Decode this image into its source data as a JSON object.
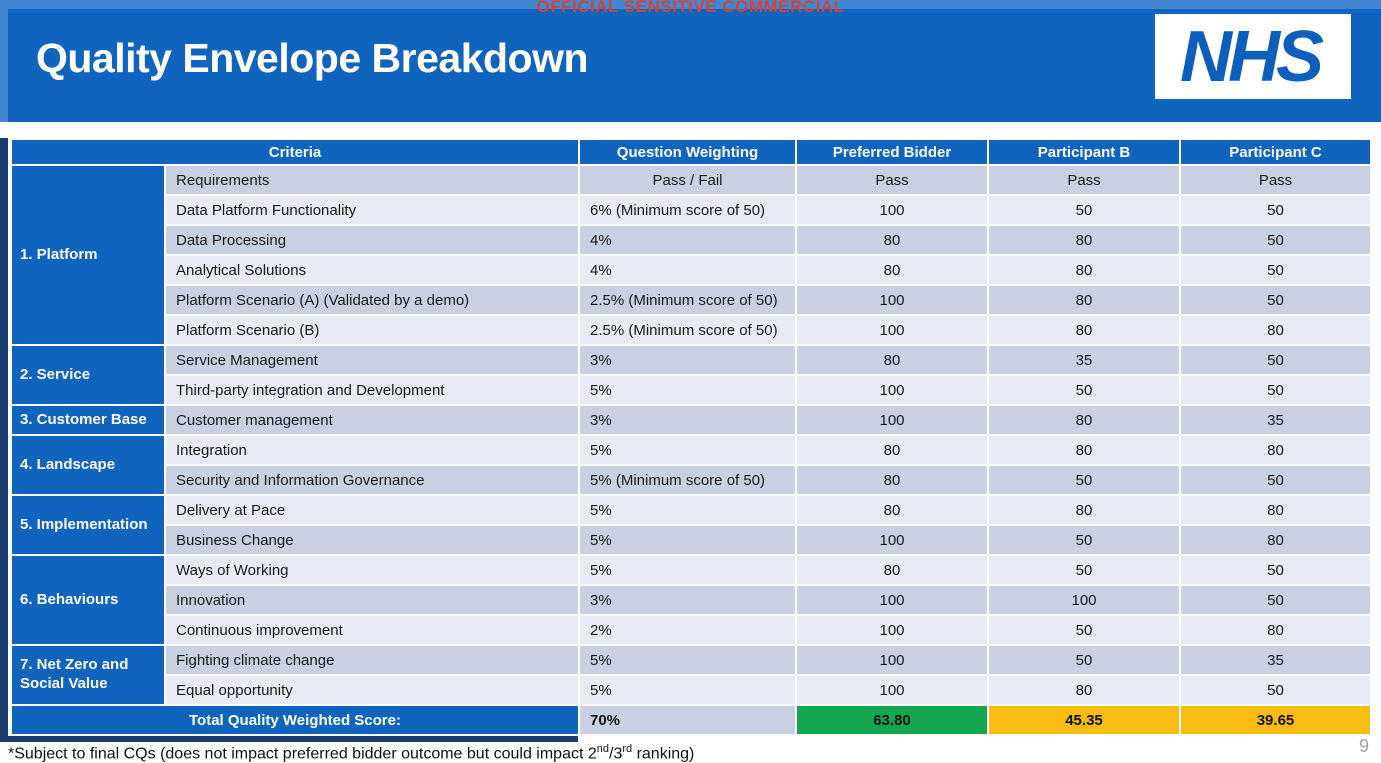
{
  "classification": "OFFICIAL SENSITIVE COMMERCIAL",
  "header": {
    "title": "Quality Envelope Breakdown",
    "logo_text": "NHS"
  },
  "table": {
    "columns": [
      "Criteria",
      "Question Weighting",
      "Preferred Bidder",
      "Participant B",
      "Participant C"
    ],
    "groups": [
      {
        "category": "1. Platform",
        "rows": [
          {
            "criterion": "Requirements",
            "weighting": "Pass / Fail",
            "align": "center",
            "preferred_bidder": "Pass",
            "participant_b": "Pass",
            "participant_c": "Pass"
          },
          {
            "criterion": "Data Platform Functionality",
            "weighting": "6% (Minimum score of 50)",
            "preferred_bidder": "100",
            "participant_b": "50",
            "participant_c": "50"
          },
          {
            "criterion": "Data Processing",
            "weighting": "4%",
            "preferred_bidder": "80",
            "participant_b": "80",
            "participant_c": "50"
          },
          {
            "criterion": "Analytical Solutions",
            "weighting": "4%",
            "preferred_bidder": "80",
            "participant_b": "80",
            "participant_c": "50"
          },
          {
            "criterion": "Platform Scenario (A) (Validated by a demo)",
            "weighting": "2.5% (Minimum score of 50)",
            "preferred_bidder": "100",
            "participant_b": "80",
            "participant_c": "50"
          },
          {
            "criterion": "Platform Scenario (B)",
            "weighting": "2.5% (Minimum score of 50)",
            "preferred_bidder": "100",
            "participant_b": "80",
            "participant_c": "80"
          }
        ]
      },
      {
        "category": "2. Service",
        "rows": [
          {
            "criterion": "Service Management",
            "weighting": "3%",
            "preferred_bidder": "80",
            "participant_b": "35",
            "participant_c": "50"
          },
          {
            "criterion": "Third-party integration and Development",
            "weighting": "5%",
            "preferred_bidder": "100",
            "participant_b": "50",
            "participant_c": "50"
          }
        ]
      },
      {
        "category": "3. Customer Base",
        "rows": [
          {
            "criterion": "Customer management",
            "weighting": "3%",
            "preferred_bidder": "100",
            "participant_b": "80",
            "participant_c": "35"
          }
        ]
      },
      {
        "category": "4. Landscape",
        "rows": [
          {
            "criterion": "Integration",
            "weighting": "5%",
            "preferred_bidder": "80",
            "participant_b": "80",
            "participant_c": "80"
          },
          {
            "criterion": "Security and Information Governance",
            "weighting": "5% (Minimum score of 50)",
            "preferred_bidder": "80",
            "participant_b": "50",
            "participant_c": "50"
          }
        ]
      },
      {
        "category": "5. Implementation",
        "rows": [
          {
            "criterion": "Delivery at Pace",
            "weighting": "5%",
            "preferred_bidder": "80",
            "participant_b": "80",
            "participant_c": "80"
          },
          {
            "criterion": "Business Change",
            "weighting": "5%",
            "preferred_bidder": "100",
            "participant_b": "50",
            "participant_c": "80"
          }
        ]
      },
      {
        "category": "6. Behaviours",
        "rows": [
          {
            "criterion": "Ways of Working",
            "weighting": "5%",
            "preferred_bidder": "80",
            "participant_b": "50",
            "participant_c": "50"
          },
          {
            "criterion": "Innovation",
            "weighting": "3%",
            "preferred_bidder": "100",
            "participant_b": "100",
            "participant_c": "50"
          },
          {
            "criterion": "Continuous improvement",
            "weighting": "2%",
            "preferred_bidder": "100",
            "participant_b": "50",
            "participant_c": "80"
          }
        ]
      },
      {
        "category": "7. Net Zero and Social Value",
        "rows": [
          {
            "criterion": "Fighting climate change",
            "weighting": "5%",
            "preferred_bidder": "100",
            "participant_b": "50",
            "participant_c": "35"
          },
          {
            "criterion": "Equal opportunity",
            "weighting": "5%",
            "preferred_bidder": "100",
            "participant_b": "80",
            "participant_c": "50"
          }
        ]
      }
    ],
    "total": {
      "label": "Total Quality Weighted Score:",
      "weighting": "70%",
      "preferred_bidder": "63.80",
      "participant_b": "45.35",
      "participant_c": "39.65"
    }
  },
  "footnote": {
    "part1": "*Subject to final CQs (does not impact preferred bidder outcome but could impact 2",
    "sup1": "nd",
    "part2": "/3",
    "sup2": "rd",
    "part3": " ranking)"
  },
  "page_number": "9",
  "colors": {
    "nhs_blue": "#1164be",
    "header_strip_blue": "#4287d2",
    "border_navy": "#1c3e6e",
    "row_dark": "#c9d0e2",
    "row_light": "#e8ebf5",
    "pass_green": "#13a84f",
    "amber": "#f8bc13",
    "classification_red": "#cf4437"
  }
}
